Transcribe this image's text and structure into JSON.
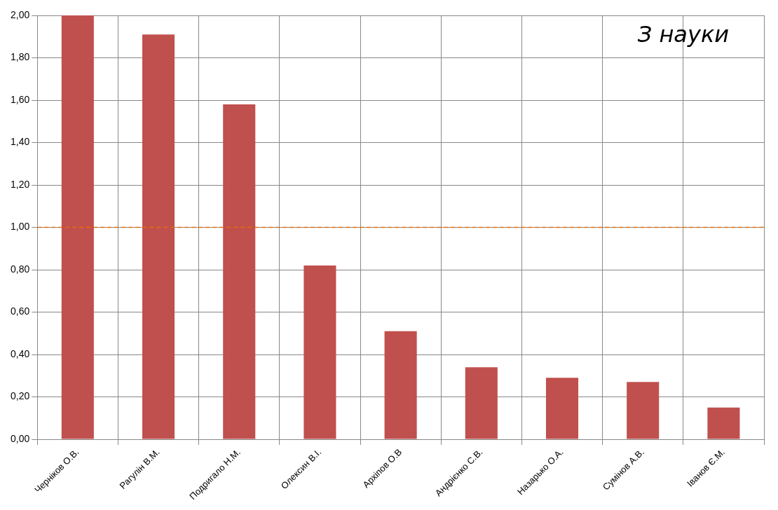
{
  "chart_data": {
    "type": "bar",
    "title": "З науки",
    "categories": [
      "Черніков О.В.",
      "Рагулін В.М.",
      "Подригало Н.М.",
      "Олексин В.І.",
      "Архіпов О.В",
      "Андрієнко С.В.",
      "Назарько О.А.",
      "Сумінов А.В.",
      "Іванов Є.М."
    ],
    "values": [
      2.0,
      1.91,
      1.58,
      0.82,
      0.51,
      0.34,
      0.29,
      0.27,
      0.15
    ],
    "color": "#c0504d",
    "ylim": [
      0,
      2
    ],
    "yticks": [
      {
        "value": 0,
        "label": "0,00"
      },
      {
        "value": 0.2,
        "label": "0,20"
      },
      {
        "value": 0.4,
        "label": "0,40"
      },
      {
        "value": 0.6,
        "label": "0,60"
      },
      {
        "value": 0.8,
        "label": "0,80"
      },
      {
        "value": 1,
        "label": "1,00"
      },
      {
        "value": 1.2,
        "label": "1,20"
      },
      {
        "value": 1.4,
        "label": "1,40"
      },
      {
        "value": 1.6,
        "label": "1,60"
      },
      {
        "value": 1.8,
        "label": "1,80"
      },
      {
        "value": 2,
        "label": "2,00"
      }
    ],
    "ref_lines": [
      {
        "axis": "y",
        "value": 1,
        "color": "#e46c0a",
        "line_style": "dashed"
      }
    ],
    "grid": true,
    "legend": false
  }
}
